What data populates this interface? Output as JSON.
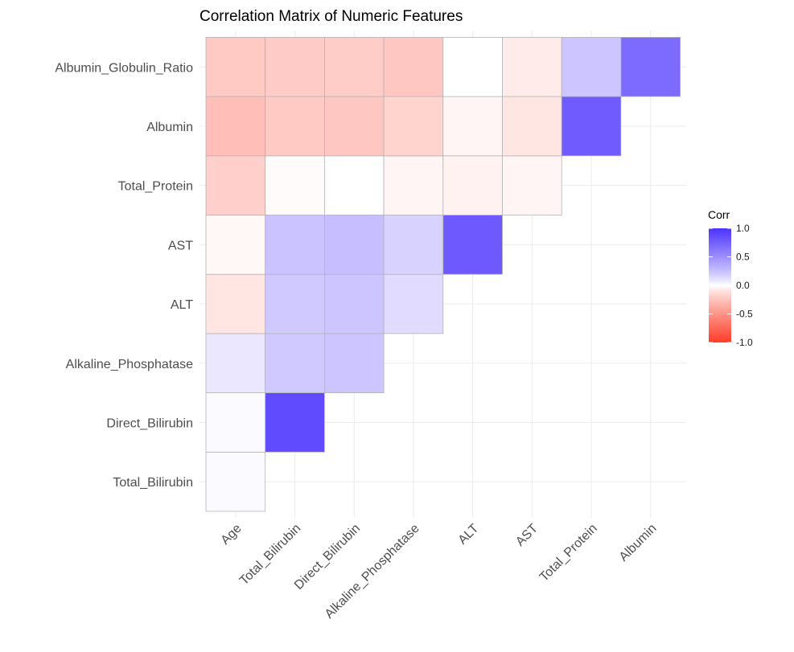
{
  "chart_data": {
    "type": "heatmap",
    "title": "Correlation Matrix of Numeric Features",
    "xlabel": "",
    "ylabel": "",
    "x_categories": [
      "Age",
      "Total_Bilirubin",
      "Direct_Bilirubin",
      "Alkaline_Phosphatase",
      "ALT",
      "AST",
      "Total_Protein",
      "Albumin"
    ],
    "y_categories": [
      "Total_Bilirubin",
      "Direct_Bilirubin",
      "Alkaline_Phosphatase",
      "ALT",
      "AST",
      "Total_Protein",
      "Albumin",
      "Albumin_Globulin_Ratio"
    ],
    "cells": [
      {
        "y": "Total_Bilirubin",
        "x": "Age",
        "value": 0.01
      },
      {
        "y": "Direct_Bilirubin",
        "x": "Age",
        "value": 0.01
      },
      {
        "y": "Direct_Bilirubin",
        "x": "Total_Bilirubin",
        "value": 0.87
      },
      {
        "y": "Alkaline_Phosphatase",
        "x": "Age",
        "value": 0.08
      },
      {
        "y": "Alkaline_Phosphatase",
        "x": "Total_Bilirubin",
        "value": 0.21
      },
      {
        "y": "Alkaline_Phosphatase",
        "x": "Direct_Bilirubin",
        "value": 0.23
      },
      {
        "y": "ALT",
        "x": "Age",
        "value": -0.09
      },
      {
        "y": "ALT",
        "x": "Total_Bilirubin",
        "value": 0.21
      },
      {
        "y": "ALT",
        "x": "Direct_Bilirubin",
        "value": 0.23
      },
      {
        "y": "ALT",
        "x": "Alkaline_Phosphatase",
        "value": 0.13
      },
      {
        "y": "AST",
        "x": "Age",
        "value": -0.02
      },
      {
        "y": "AST",
        "x": "Total_Bilirubin",
        "value": 0.24
      },
      {
        "y": "AST",
        "x": "Direct_Bilirubin",
        "value": 0.26
      },
      {
        "y": "AST",
        "x": "Alkaline_Phosphatase",
        "value": 0.17
      },
      {
        "y": "AST",
        "x": "ALT",
        "value": 0.79
      },
      {
        "y": "Total_Protein",
        "x": "Age",
        "value": -0.19
      },
      {
        "y": "Total_Protein",
        "x": "Total_Bilirubin",
        "value": -0.01
      },
      {
        "y": "Total_Protein",
        "x": "Direct_Bilirubin",
        "value": 0.0
      },
      {
        "y": "Total_Protein",
        "x": "Alkaline_Phosphatase",
        "value": -0.03
      },
      {
        "y": "Total_Protein",
        "x": "ALT",
        "value": -0.04
      },
      {
        "y": "Total_Protein",
        "x": "AST",
        "value": -0.03
      },
      {
        "y": "Albumin",
        "x": "Age",
        "value": -0.27
      },
      {
        "y": "Albumin",
        "x": "Total_Bilirubin",
        "value": -0.22
      },
      {
        "y": "Albumin",
        "x": "Direct_Bilirubin",
        "value": -0.23
      },
      {
        "y": "Albumin",
        "x": "Alkaline_Phosphatase",
        "value": -0.17
      },
      {
        "y": "Albumin",
        "x": "ALT",
        "value": -0.03
      },
      {
        "y": "Albumin",
        "x": "AST",
        "value": -0.09
      },
      {
        "y": "Albumin",
        "x": "Total_Protein",
        "value": 0.78
      },
      {
        "y": "Albumin_Globulin_Ratio",
        "x": "Age",
        "value": -0.22
      },
      {
        "y": "Albumin_Globulin_Ratio",
        "x": "Total_Bilirubin",
        "value": -0.21
      },
      {
        "y": "Albumin_Globulin_Ratio",
        "x": "Direct_Bilirubin",
        "value": -0.2
      },
      {
        "y": "Albumin_Globulin_Ratio",
        "x": "Alkaline_Phosphatase",
        "value": -0.23
      },
      {
        "y": "Albumin_Globulin_Ratio",
        "x": "ALT",
        "value": 0.0
      },
      {
        "y": "Albumin_Globulin_Ratio",
        "x": "AST",
        "value": -0.07
      },
      {
        "y": "Albumin_Globulin_Ratio",
        "x": "Total_Protein",
        "value": 0.23
      },
      {
        "y": "Albumin_Globulin_Ratio",
        "x": "Albumin",
        "value": 0.69
      }
    ],
    "color_scale": {
      "low": "#ff0000",
      "mid": "#ffffff",
      "high": "#0000ff",
      "limits": [
        -1,
        1
      ]
    },
    "legend": {
      "title": "Corr",
      "placement": "right",
      "ticks": [
        1.0,
        0.5,
        0.0,
        -0.5,
        -1.0
      ],
      "tick_labels": [
        "1.0",
        "0.5",
        "0.0",
        "-0.5",
        "-1.0"
      ]
    },
    "grid": true
  }
}
